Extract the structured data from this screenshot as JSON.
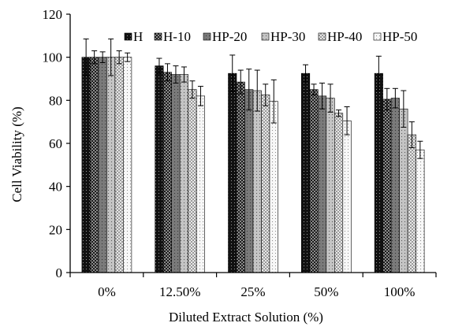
{
  "chart_data": {
    "type": "bar",
    "title": "",
    "xlabel": "Diluted Extract Solution (%)",
    "ylabel": "Cell Viability (%)",
    "ylim": [
      0,
      120
    ],
    "yticks": [
      0,
      20,
      40,
      60,
      80,
      100,
      120
    ],
    "grid": false,
    "legend_position": "top-right",
    "categories": [
      "0%",
      "12.50%",
      "25%",
      "50%",
      "100%"
    ],
    "series": [
      {
        "name": "H",
        "color": "#111111",
        "pattern": "dots-light",
        "values": [
          100,
          96,
          92.5,
          92.5,
          92.5
        ],
        "errors": [
          8.5,
          3.5,
          8.5,
          4,
          8
        ]
      },
      {
        "name": "H-10",
        "color": "#1c1c1c",
        "pattern": "checker",
        "values": [
          100,
          93,
          88.5,
          85,
          80.5
        ],
        "errors": [
          3,
          4,
          5.5,
          2.5,
          5
        ]
      },
      {
        "name": "HP-20",
        "color": "#808080",
        "pattern": "dots-dark",
        "values": [
          100,
          92,
          85,
          82,
          81
        ],
        "errors": [
          2.5,
          4,
          9.5,
          6,
          4.5
        ]
      },
      {
        "name": "HP-30",
        "color": "#c2c2c2",
        "pattern": "dots-dark",
        "values": [
          100,
          92,
          84.5,
          81,
          76
        ],
        "errors": [
          8.5,
          3.5,
          9.5,
          6.5,
          8.5
        ]
      },
      {
        "name": "HP-40",
        "color": "#dadada",
        "pattern": "checker",
        "values": [
          100,
          85,
          82.5,
          74,
          64
        ],
        "errors": [
          3,
          4,
          5,
          1.5,
          6
        ]
      },
      {
        "name": "HP-50",
        "color": "#f7f7f7",
        "pattern": "dots-dark",
        "values": [
          100,
          82,
          79.5,
          70.5,
          57
        ],
        "errors": [
          2,
          4.5,
          10,
          6.5,
          4
        ]
      }
    ]
  }
}
